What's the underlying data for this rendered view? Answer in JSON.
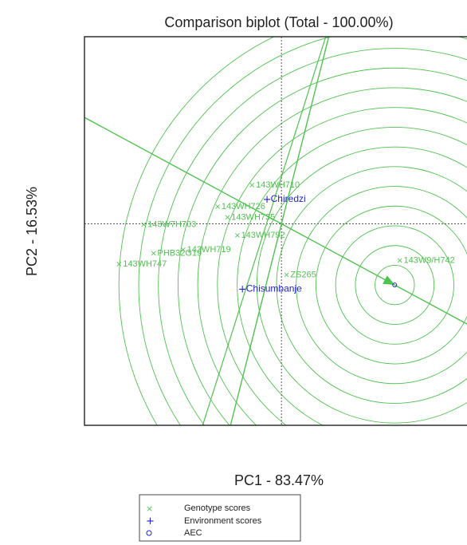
{
  "chart_data": {
    "type": "scatter",
    "title": "Comparison biplot (Total - 100.00%)",
    "xlabel": "PC1 - 83.47%",
    "ylabel": "PC2 - 16.53%",
    "xlim": [
      -4.0,
      3.8
    ],
    "ylim": [
      -2.8,
      2.6
    ],
    "grid": false,
    "legend_placement": "bottom",
    "colors": {
      "genotype": "#4fc24f",
      "environment": "#2222cc",
      "aec": "#2222cc",
      "rings": "#4fc24f",
      "axes": "#222222"
    },
    "genotypes": [
      {
        "name": "143W9/H742",
        "x": 2.4,
        "y": -0.5
      },
      {
        "name": "ZS265",
        "x": 0.1,
        "y": -0.7
      },
      {
        "name": "143WH710",
        "x": -0.6,
        "y": 0.55
      },
      {
        "name": "143WH726",
        "x": -1.3,
        "y": 0.25
      },
      {
        "name": "143WH735",
        "x": -1.1,
        "y": 0.1
      },
      {
        "name": "143WH792",
        "x": -0.9,
        "y": -0.15
      },
      {
        "name": "143WH719",
        "x": -2.0,
        "y": -0.35
      },
      {
        "name": "143WH747",
        "x": -3.3,
        "y": -0.55
      },
      {
        "name": "PHB32G19",
        "x": -2.6,
        "y": -0.4
      },
      {
        "name": "143W7H703",
        "x": -2.8,
        "y": 0.0
      }
    ],
    "environments": [
      {
        "name": "Chiredzi",
        "x": -0.3,
        "y": 0.35
      },
      {
        "name": "Chisumbanje",
        "x": -0.8,
        "y": -0.9
      }
    ],
    "aec_point": {
      "x": 2.3,
      "y": -0.85
    },
    "legend": [
      "Genotype scores",
      "Environment scores",
      "AEC"
    ]
  }
}
